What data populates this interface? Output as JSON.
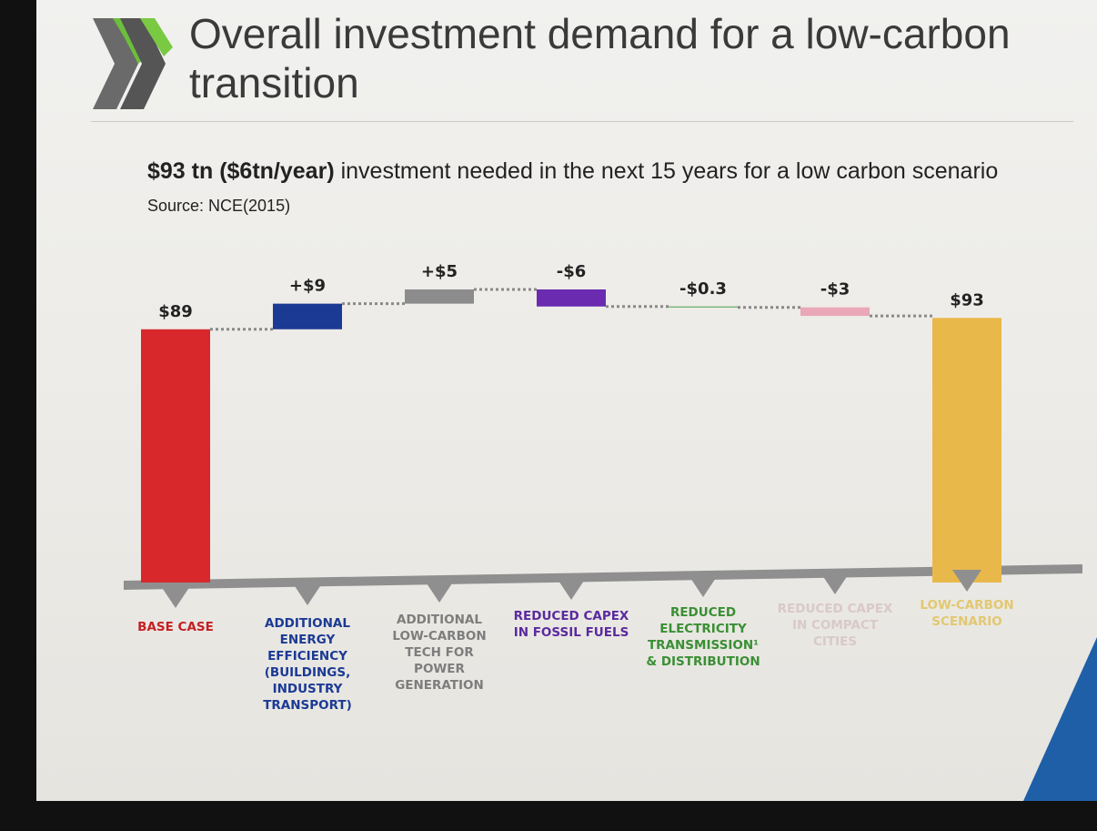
{
  "chart_data": {
    "type": "waterfall",
    "title": "Overall investment demand for a low-carbon transition",
    "subtitle_bold": "$93 tn ($6tn/year)",
    "subtitle": "investment needed in the next 15 years for a low carbon scenario",
    "source": "Source: NCE(2015)",
    "categories": [
      "BASE CASE",
      "ADDITIONAL ENERGY EFFICIENCY (BUILDINGS, INDUSTRY TRANSPORT)",
      "ADDITIONAL LOW-CARBON TECH FOR POWER GENERATION",
      "REDUCED CAPEX IN FOSSIL FUELS",
      "REDUCED ELECTRICITY TRANSMISSION¹ & DISTRIBUTION",
      "REDUCED CAPEX IN COMPACT CITIES",
      "LOW-CARBON SCENARIO"
    ],
    "values": [
      89,
      9,
      5,
      -6,
      -0.3,
      -3,
      93
    ],
    "value_labels": [
      "$89",
      "+$9",
      "+$5",
      "-$6",
      "-$0.3",
      "-$3",
      "$93"
    ],
    "colors": [
      "#d8282b",
      "#1b3a94",
      "#8c8c8c",
      "#6a2bb0",
      "#3f9a3a",
      "#e9a7b8",
      "#e8b84a"
    ],
    "label_colors": [
      "#c42024",
      "#1b3a94",
      "#7d7d7d",
      "#5a2aa0",
      "#3a8f34",
      "#d9c9c9",
      "#e2c870"
    ]
  }
}
